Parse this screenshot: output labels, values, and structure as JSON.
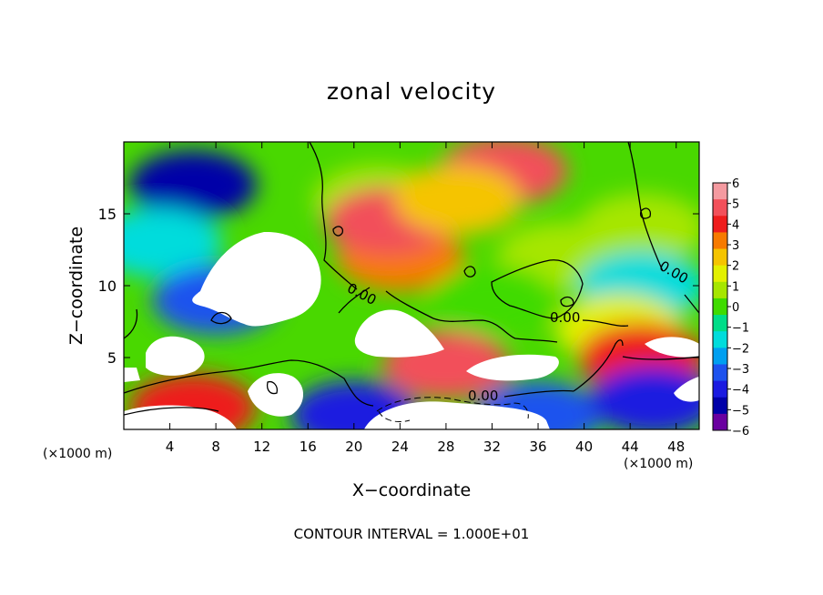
{
  "chart_data": {
    "type": "heatmap",
    "title": "zonal velocity",
    "xlabel": "X−coordinate",
    "ylabel": "Z−coordinate",
    "x_unit_left": "(×1000 m)",
    "x_unit_right": "(×1000 m)",
    "xlim": [
      0,
      50
    ],
    "ylim": [
      0,
      20
    ],
    "xticks": [
      "4",
      "8",
      "12",
      "16",
      "20",
      "24",
      "28",
      "32",
      "36",
      "40",
      "44",
      "48"
    ],
    "yticks": [
      "5",
      "10",
      "15"
    ],
    "colorbar": {
      "ticks": [
        "6",
        "5",
        "4",
        "3",
        "2",
        "1",
        "0",
        "−1",
        "−2",
        "−3",
        "−4",
        "−5",
        "−6"
      ],
      "colors": [
        "#f49aa0",
        "#f2505a",
        "#ee1c1c",
        "#f77a00",
        "#f5c400",
        "#e3f000",
        "#a6e600",
        "#3fdb00",
        "#00dd88",
        "#00dcdc",
        "#009ff0",
        "#1d52ee",
        "#1a1ae0",
        "#0000a8",
        "#6a00a0"
      ]
    },
    "contour_labels": [
      "0.00",
      "0.00",
      "0.00",
      "0.00"
    ],
    "contour_interval": "CONTOUR INTERVAL = 1.000E+01",
    "regions": [
      {
        "cx": 6,
        "cz": 17,
        "value": -5
      },
      {
        "cx": 3,
        "cz": 13,
        "value": -2
      },
      {
        "cx": 8,
        "cz": 9,
        "value": -3
      },
      {
        "cx": 22,
        "cz": 16,
        "value": 1
      },
      {
        "cx": 24,
        "cz": 12,
        "value": 3.5
      },
      {
        "cx": 23,
        "cz": 14.5,
        "value": 5
      },
      {
        "cx": 33,
        "cz": 18,
        "value": 5
      },
      {
        "cx": 29,
        "cz": 16,
        "value": 3
      },
      {
        "cx": 38,
        "cz": 12,
        "value": 1
      },
      {
        "cx": 45,
        "cz": 14,
        "value": 0.5
      },
      {
        "cx": 45,
        "cz": 10,
        "value": -2
      },
      {
        "cx": 32,
        "cz": 9,
        "value": 0
      },
      {
        "cx": 43,
        "cz": 7,
        "value": 1.5
      },
      {
        "cx": 28,
        "cz": 4.5,
        "value": 5
      },
      {
        "cx": 45,
        "cz": 5,
        "value": 4
      },
      {
        "cx": 36,
        "cz": 1,
        "value": -3
      },
      {
        "cx": 6,
        "cz": 1.5,
        "value": 4
      },
      {
        "cx": 20,
        "cz": 1,
        "value": -4.5
      },
      {
        "cx": 46,
        "cz": 2,
        "value": -4
      }
    ]
  }
}
